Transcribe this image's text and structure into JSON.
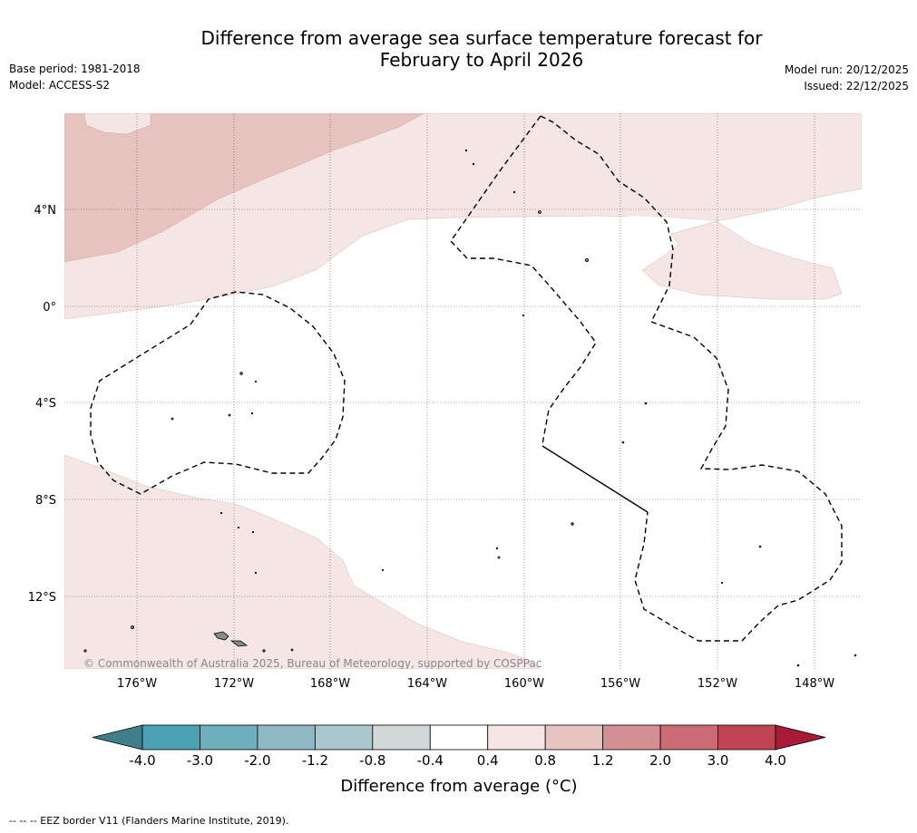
{
  "title_line1": "Difference from average sea surface temperature forecast for",
  "title_line2": "February to April 2026",
  "meta_left": [
    "Base period: 1981-2018",
    "Model: ACCESS-S2"
  ],
  "meta_right": [
    "Model run: 20/12/2025",
    "Issued: 22/12/2025"
  ],
  "copyright": "© Commonwealth of Australia 2025, Bureau of Meteorology, supported by COSPPac",
  "lat_labels": [
    "4°N",
    "0°",
    "4°S",
    "8°S",
    "12°S"
  ],
  "lon_labels": [
    "176°W",
    "172°W",
    "168°W",
    "164°W",
    "160°W",
    "156°W",
    "152°W",
    "148°W"
  ],
  "colorbar": {
    "ticks": [
      "-4.0",
      "-3.0",
      "-2.0",
      "-1.2",
      "-0.8",
      "-0.4",
      "0.4",
      "0.8",
      "1.2",
      "2.0",
      "3.0",
      "4.0"
    ],
    "colors": [
      "#3f7f89",
      "#4aa3b4",
      "#6faebd",
      "#8fb8c4",
      "#aac7cd",
      "#d2d7d9",
      "#ffffff",
      "#f5e6e5",
      "#e6c3be",
      "#d48e94",
      "#cb6b75",
      "#c04554",
      "#a81a36"
    ],
    "label": "Difference from average (°C)"
  },
  "legend_note": "--  --  -- EEZ border V11 (Flanders Marine Institute, 2019)."
}
